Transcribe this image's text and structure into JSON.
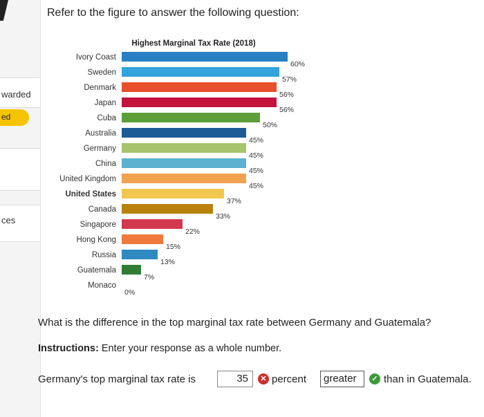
{
  "sidebar": {
    "items": [
      "warded",
      "ed",
      "ces"
    ]
  },
  "prompt": "Refer to the figure to answer the following question:",
  "chart_data": {
    "type": "bar",
    "orientation": "horizontal",
    "title": "Highest Marginal Tax Rate (2018)",
    "categories": [
      "Ivory Coast",
      "Sweden",
      "Denmark",
      "Japan",
      "Cuba",
      "Australia",
      "Germany",
      "China",
      "United Kingdom",
      "United States",
      "Canada",
      "Singapore",
      "Hong Kong",
      "Russia",
      "Guatemala",
      "Monaco"
    ],
    "values": [
      60,
      57,
      56,
      56,
      50,
      45,
      45,
      45,
      45,
      37,
      33,
      22,
      15,
      13,
      7,
      0
    ],
    "value_labels": [
      "60%",
      "57%",
      "56%",
      "56%",
      "50%",
      "45%",
      "45%",
      "45%",
      "45%",
      "37%",
      "33%",
      "22%",
      "15%",
      "13%",
      "7%",
      "0%"
    ],
    "colors": [
      "#2a7fc4",
      "#34a3dc",
      "#e84f2c",
      "#c4123e",
      "#5c9e3a",
      "#1d5b96",
      "#a6c46c",
      "#5bb1cf",
      "#f0a24e",
      "#f1c74f",
      "#b8820c",
      "#d4384f",
      "#f07a3c",
      "#2f8ac2",
      "#2e7e34",
      "#ffffff"
    ],
    "bold_category": "United States",
    "xlim": [
      0,
      60
    ]
  },
  "question": "What is the difference in the top marginal tax rate between Germany and Guatemala?",
  "instructions": {
    "label": "Instructions:",
    "text": " Enter your response as a whole number."
  },
  "answer": {
    "prefix": "Germany's top marginal tax rate is",
    "value": "35",
    "status_wrong_icon": "x-circle-icon",
    "middle": "percent",
    "select_value": "greater",
    "status_correct_icon": "check-circle-icon",
    "suffix": "than in Guatemala."
  }
}
